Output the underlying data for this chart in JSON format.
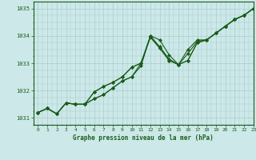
{
  "title": "Graphe pression niveau de la mer (hPa)",
  "xlim": [
    -0.5,
    23
  ],
  "ylim": [
    1030.75,
    1035.25
  ],
  "yticks": [
    1031,
    1032,
    1033,
    1034,
    1035
  ],
  "xticks": [
    0,
    1,
    2,
    3,
    4,
    5,
    6,
    7,
    8,
    9,
    10,
    11,
    12,
    13,
    14,
    15,
    16,
    17,
    18,
    19,
    20,
    21,
    22,
    23
  ],
  "bg_color": "#cce8e8",
  "grid_color": "#aacccc",
  "line_color": "#1a5c1a",
  "marker_color": "#1a5c1a",
  "series": [
    [
      1031.2,
      1031.35,
      1031.15,
      1031.55,
      1031.5,
      1031.5,
      1031.7,
      1031.85,
      1032.1,
      1032.35,
      1032.5,
      1032.9,
      1034.0,
      1033.85,
      1033.3,
      1032.95,
      1033.35,
      1033.8,
      1033.85,
      1034.1,
      1034.35,
      1034.6,
      1034.75,
      1035.0
    ],
    [
      1031.2,
      1031.35,
      1031.15,
      1031.55,
      1031.5,
      1031.5,
      1031.7,
      1031.85,
      1032.1,
      1032.35,
      1032.5,
      1033.0,
      1034.0,
      1033.6,
      1033.15,
      1032.95,
      1033.5,
      1033.85,
      1033.85,
      1034.1,
      1034.35,
      1034.6,
      1034.75,
      1035.0
    ],
    [
      1031.2,
      1031.35,
      1031.15,
      1031.55,
      1031.5,
      1031.5,
      1031.95,
      1032.15,
      1032.3,
      1032.5,
      1032.85,
      1033.0,
      1033.95,
      1033.55,
      1033.1,
      1032.95,
      1033.1,
      1033.75,
      1033.85,
      1034.1,
      1034.35,
      1034.6,
      1034.75,
      1035.0
    ],
    [
      1031.2,
      1031.35,
      1031.15,
      1031.55,
      1031.5,
      1031.5,
      1031.95,
      1032.15,
      1032.3,
      1032.5,
      1032.85,
      1033.0,
      1033.95,
      1033.55,
      1033.1,
      1032.95,
      1033.1,
      1033.75,
      1033.85,
      1034.1,
      1034.35,
      1034.6,
      1034.75,
      1035.0
    ]
  ],
  "figsize": [
    3.2,
    2.0
  ],
  "dpi": 100
}
